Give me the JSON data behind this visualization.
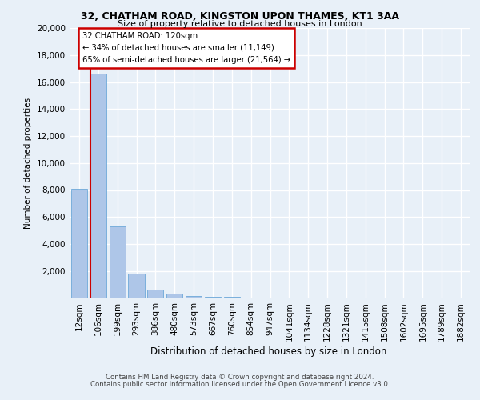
{
  "title1": "32, CHATHAM ROAD, KINGSTON UPON THAMES, KT1 3AA",
  "title2": "Size of property relative to detached houses in London",
  "xlabel": "Distribution of detached houses by size in London",
  "ylabel": "Number of detached properties",
  "bar_labels": [
    "12sqm",
    "106sqm",
    "199sqm",
    "293sqm",
    "386sqm",
    "480sqm",
    "573sqm",
    "667sqm",
    "760sqm",
    "854sqm",
    "947sqm",
    "1041sqm",
    "1134sqm",
    "1228sqm",
    "1321sqm",
    "1415sqm",
    "1508sqm",
    "1602sqm",
    "1695sqm",
    "1789sqm",
    "1882sqm"
  ],
  "bar_values": [
    8100,
    16600,
    5300,
    1800,
    600,
    300,
    150,
    100,
    80,
    50,
    30,
    20,
    20,
    10,
    10,
    10,
    10,
    10,
    10,
    5,
    5
  ],
  "bar_color": "#aec6e8",
  "bar_edge_color": "#5a9fd4",
  "vline_color": "#cc0000",
  "annotation_box_text": "32 CHATHAM ROAD: 120sqm\n← 34% of detached houses are smaller (11,149)\n65% of semi-detached houses are larger (21,564) →",
  "annotation_box_color": "#cc0000",
  "ylim": [
    0,
    20000
  ],
  "yticks": [
    0,
    2000,
    4000,
    6000,
    8000,
    10000,
    12000,
    14000,
    16000,
    18000,
    20000
  ],
  "footer1": "Contains HM Land Registry data © Crown copyright and database right 2024.",
  "footer2": "Contains public sector information licensed under the Open Government Licence v3.0.",
  "bg_color": "#e8f0f8",
  "grid_color": "#ffffff"
}
